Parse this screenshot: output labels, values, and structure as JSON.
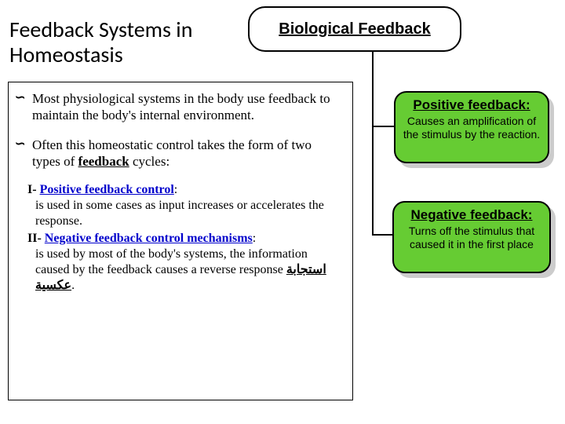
{
  "header": {
    "label": "Biological Feedback"
  },
  "title": "Feedback Systems in\nHomeostasis",
  "body": {
    "p1_a": "Most physiological systems in the body use feedback to maintain the body's internal environment.",
    "p2_a": "Often this homeostatic control takes the form of two types of ",
    "p2_link": "feedback",
    "p2_b": " cycles:",
    "i_label": "I- ",
    "i_link": "Positive feedback control",
    "i_colon": ":",
    "i_desc": "is used in some cases as input increases or accelerates the response.",
    "ii_label": "II- ",
    "ii_link": "Negative feedback control mechanisms",
    "ii_colon": ":",
    "ii_desc_a": "is used by most of the body's systems, the information caused by the feedback causes a reverse response ",
    "ii_arabic": "استجابة عكسية",
    "ii_period": "."
  },
  "positive": {
    "title": "Positive feedback:",
    "body": "Causes an amplification of the stimulus by the reaction."
  },
  "negative": {
    "title": "Negative feedback:",
    "body": "Turns off the stimulus that caused it in the first place"
  },
  "colors": {
    "green": "#66cc33",
    "blue": "#0000cc"
  }
}
